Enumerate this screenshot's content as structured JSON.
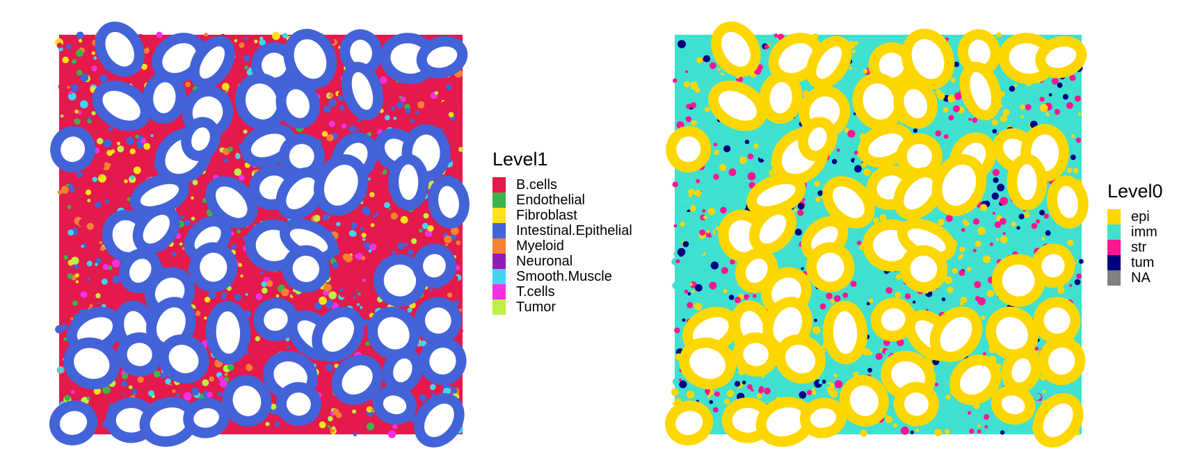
{
  "chart_data": [
    {
      "type": "scatter",
      "legend": {
        "title": "Level1",
        "placement": "right",
        "entries": [
          {
            "label": "B.cells",
            "color": "#E31A4B"
          },
          {
            "label": "Endothelial",
            "color": "#3CB44B"
          },
          {
            "label": "Fibroblast",
            "color": "#FFE119"
          },
          {
            "label": "Intestinal.Epithelial",
            "color": "#4363D8"
          },
          {
            "label": "Myeloid",
            "color": "#F58231"
          },
          {
            "label": "Neuronal",
            "color": "#911EB4"
          },
          {
            "label": "Smooth.Muscle",
            "color": "#42D4F4"
          },
          {
            "label": "T.cells",
            "color": "#F032E6"
          },
          {
            "label": "Tumor",
            "color": "#BFEF45"
          }
        ]
      },
      "axes": "none",
      "grid": false
    },
    {
      "type": "scatter",
      "legend": {
        "title": "Level0",
        "placement": "right",
        "entries": [
          {
            "label": "epi",
            "color": "#FFD700"
          },
          {
            "label": "imm",
            "color": "#40E0D0"
          },
          {
            "label": "str",
            "color": "#FF1493"
          },
          {
            "label": "tum",
            "color": "#000080"
          },
          {
            "label": "NA",
            "color": "#808080"
          }
        ]
      },
      "axes": "none",
      "grid": false
    }
  ]
}
